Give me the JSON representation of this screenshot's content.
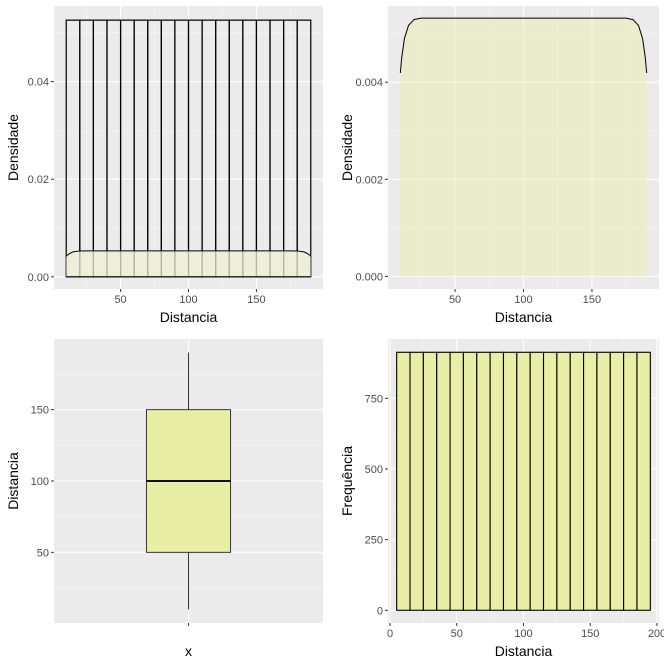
{
  "colors": {
    "fill": "#e8eea5",
    "light_fill": "#eef0d4",
    "stroke": "#000000",
    "panel": "#ebebeb"
  },
  "chart_data": [
    {
      "type": "area",
      "xlabel": "Distancia",
      "ylabel": "Densidade",
      "xlim": [
        1,
        199
      ],
      "ylim": [
        -0.0025,
        0.0555
      ],
      "xticks": [
        50,
        100,
        150
      ],
      "xtick_labels": [
        "50",
        "100",
        "150"
      ],
      "yticks": [
        0,
        0.02,
        0.04
      ],
      "ytick_labels": [
        "0.00",
        "0.02",
        "0.04"
      ],
      "histogram_bins": {
        "start": 10,
        "width": 10,
        "count": 18,
        "density": 0.0526
      },
      "density_curve": {
        "x": [
          10,
          12,
          15,
          20,
          25,
          175,
          180,
          185,
          188,
          190
        ],
        "y": [
          0.0042,
          0.0047,
          0.0051,
          0.0053,
          0.00532,
          0.00532,
          0.0053,
          0.0051,
          0.0047,
          0.0042
        ]
      }
    },
    {
      "type": "area",
      "xlabel": "Distancia",
      "ylabel": "Densidade",
      "xlim": [
        1,
        199
      ],
      "ylim": [
        -0.00026,
        0.00557
      ],
      "xticks": [
        50,
        100,
        150
      ],
      "xtick_labels": [
        "50",
        "100",
        "150"
      ],
      "yticks": [
        0,
        0.002,
        0.004
      ],
      "ytick_labels": [
        "0.000",
        "0.002",
        "0.004"
      ],
      "density_curve": {
        "x": [
          10,
          11,
          13,
          16,
          20,
          25,
          175,
          180,
          184,
          187,
          189,
          190
        ],
        "y": [
          0.00419,
          0.0045,
          0.0049,
          0.00517,
          0.00529,
          0.00532,
          0.00532,
          0.00529,
          0.00517,
          0.0049,
          0.0045,
          0.00419
        ]
      }
    },
    {
      "type": "box",
      "xlabel": "x",
      "ylabel": "Distancia",
      "ylim": [
        0.5,
        199.5
      ],
      "yticks": [
        50,
        100,
        150
      ],
      "ytick_labels": [
        "50",
        "100",
        "150"
      ],
      "xtick_labels": [
        ""
      ],
      "box": {
        "min": 10,
        "q1": 50,
        "median": 100,
        "q3": 150,
        "max": 190
      }
    },
    {
      "type": "bar",
      "xlabel": "Distancia",
      "ylabel": "Frequência",
      "xlim": [
        -1.5,
        201.5
      ],
      "ylim": [
        -45,
        960
      ],
      "xticks": [
        0,
        50,
        100,
        150,
        200
      ],
      "xtick_labels": [
        "0",
        "50",
        "100",
        "150",
        "200"
      ],
      "yticks": [
        0,
        250,
        500,
        750
      ],
      "ytick_labels": [
        "0",
        "250",
        "500",
        "750"
      ],
      "bins": {
        "start": 5,
        "width": 10,
        "count": 19,
        "value": 913
      }
    }
  ]
}
